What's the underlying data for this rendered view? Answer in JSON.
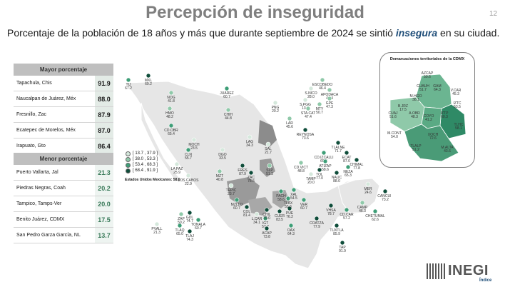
{
  "slide": {
    "title": "Percepción de inseguridad",
    "number": "12",
    "subtitle_before": "Porcentaje de la población de 18 años y más que durante septiembre de 2024 se sintió ",
    "subtitle_highlight": "insegura",
    "subtitle_after": " en su ciudad."
  },
  "top_table": {
    "header": "Mayor porcentaje",
    "rows": [
      {
        "city": "Tapachula, Chis",
        "value": "91.9"
      },
      {
        "city": "Naucalpan de Juárez, Méx",
        "value": "88.0"
      },
      {
        "city": "Fresnillo, Zac",
        "value": "87.9"
      },
      {
        "city": "Ecatepec de Morelos, Méx",
        "value": "87.0"
      },
      {
        "city": "Irapuato, Gto",
        "value": "86.4"
      }
    ]
  },
  "bottom_table": {
    "header": "Menor porcentaje",
    "rows": [
      {
        "city": "Puerto Vallarta, Jal",
        "value": "21.3"
      },
      {
        "city": "Piedras Negras, Coah",
        "value": "20.2"
      },
      {
        "city": "Tampico, Tamps-Ver",
        "value": "20.0"
      },
      {
        "city": "Benito Juárez, CDMX",
        "value": "17.5"
      },
      {
        "city": "San Pedro Garza García, NL",
        "value": "13.7"
      }
    ]
  },
  "legend": {
    "items": [
      {
        "label": "[ 13.7 , 37.9 ]",
        "color": "#d5e8dc"
      },
      {
        "label": "[ 38.0 , 53.3 ]",
        "color": "#8fc9a9"
      },
      {
        "label": "[ 53.4 , 68.3 ]",
        "color": "#3e9e77"
      },
      {
        "label": "[ 68.4 , 91.9 ]",
        "color": "#0f4d3a"
      }
    ],
    "national": "Estados Unidos Mexicanos: 58.6"
  },
  "cities": [
    {
      "code": "TIJ",
      "value": "67.2",
      "color": "#3e9e77"
    },
    {
      "code": "MXL",
      "value": "69.2",
      "color": "#0f4d3a"
    },
    {
      "code": "NOG",
      "value": "41.8",
      "color": "#8fc9a9"
    },
    {
      "code": "HMO",
      "value": "48.2",
      "color": "#8fc9a9"
    },
    {
      "code": "CD.OBR",
      "value": "65.4",
      "color": "#3e9e77"
    },
    {
      "code": "JUÁREZ",
      "value": "60.7",
      "color": "#3e9e77"
    },
    {
      "code": "CHIH",
      "value": "44.8",
      "color": "#8fc9a9"
    },
    {
      "code": "PNG",
      "value": "20.2",
      "color": "#d5e8dc"
    },
    {
      "code": "ESCOBEDO",
      "value": "46.4",
      "color": "#8fc9a9"
    },
    {
      "code": "S.NICO",
      "value": "28.0",
      "color": "#d5e8dc"
    },
    {
      "code": "APODACA",
      "value": "42.4",
      "color": "#8fc9a9"
    },
    {
      "code": "S.PGG",
      "value": "13.7",
      "color": "#d5e8dc"
    },
    {
      "code": "GPE",
      "value": "47.3",
      "color": "#8fc9a9"
    },
    {
      "code": "MTY",
      "value": "50.7",
      "color": "#8fc9a9"
    },
    {
      "code": "STA.CAT",
      "value": "47.4",
      "color": "#8fc9a9"
    },
    {
      "code": "LAR",
      "value": "45.6",
      "color": "#8fc9a9"
    },
    {
      "code": "REYNOSA",
      "value": "73.6",
      "color": "#0f4d3a"
    },
    {
      "code": "MOCH",
      "value": "23.5",
      "color": "#d5e8dc"
    },
    {
      "code": "CLN",
      "value": "55.7",
      "color": "#3e9e77"
    },
    {
      "code": "LAG",
      "value": "34.3",
      "color": "#d5e8dc"
    },
    {
      "code": "DGO",
      "value": "33.5",
      "color": "#d5e8dc"
    },
    {
      "code": "SAL",
      "value": "21.7",
      "color": "#d5e8dc"
    },
    {
      "code": "LA PAZ",
      "value": "25.9",
      "color": "#d5e8dc"
    },
    {
      "code": "LOS CABOS",
      "value": "22.9",
      "color": "#d5e8dc"
    },
    {
      "code": "MZT",
      "value": "40.8",
      "color": "#8fc9a9"
    },
    {
      "code": "FRES",
      "value": "87.9",
      "color": "#0f4d3a"
    },
    {
      "code": "ZAC",
      "value": "78.5",
      "color": "#0f4d3a"
    },
    {
      "code": "TEPIC",
      "value": "23.7",
      "color": "#d5e8dc"
    },
    {
      "code": "SLP",
      "value": "51.3",
      "color": "#8fc9a9"
    },
    {
      "code": "CD.VICT",
      "value": "48.8",
      "color": "#8fc9a9"
    },
    {
      "code": "TAMP",
      "value": "20.0",
      "color": "#d5e8dc"
    },
    {
      "code": "TLALNE",
      "value": "71.7",
      "color": "#0f4d3a"
    },
    {
      "code": "CD.IZCALLI",
      "value": "60.5",
      "color": "#3e9e77"
    },
    {
      "code": "ECAT",
      "value": "87.0",
      "color": "#0f4d3a"
    },
    {
      "code": "CHIMAL",
      "value": "77.8",
      "color": "#0f4d3a"
    },
    {
      "code": "ATIZAP",
      "value": "58.6",
      "color": "#3e9e77"
    },
    {
      "code": "NEZA",
      "value": "65.3",
      "color": "#3e9e77"
    },
    {
      "code": "TOL",
      "value": "77.0",
      "color": "#0f4d3a"
    },
    {
      "code": "NAUC",
      "value": "88.0",
      "color": "#0f4d3a"
    },
    {
      "code": "PVALL",
      "value": "21.3",
      "color": "#d5e8dc"
    },
    {
      "code": "ZAP",
      "value": "50.2",
      "color": "#8fc9a9"
    },
    {
      "code": "GDL",
      "value": "74.7",
      "color": "#0f4d3a"
    },
    {
      "code": "TONALA",
      "value": "60.7",
      "color": "#3e9e77"
    },
    {
      "code": "TLAQ",
      "value": "65.0",
      "color": "#3e9e77"
    },
    {
      "code": "TLAJ",
      "value": "74.3",
      "color": "#0f4d3a"
    },
    {
      "code": "MZLLO",
      "value": "60.7",
      "color": "#3e9e77"
    },
    {
      "code": "COL",
      "value": "81.4",
      "color": "#0f4d3a"
    },
    {
      "code": "L.CAR",
      "value": "34.1",
      "color": "#d5e8dc"
    },
    {
      "code": "IGT",
      "value": "57.7",
      "color": "#3e9e77"
    },
    {
      "code": "CHIL",
      "value": "79.0",
      "color": "#0f4d3a"
    },
    {
      "code": "ACAP",
      "value": "73.8",
      "color": "#0f4d3a"
    },
    {
      "code": "CUER",
      "value": "83.5",
      "color": "#0f4d3a"
    },
    {
      "code": "PUE",
      "value": "76.2",
      "color": "#0f4d3a"
    },
    {
      "code": "TLAX",
      "value": "55.6",
      "color": "#3e9e77"
    },
    {
      "code": "PACH",
      "value": "58.6",
      "color": "#3e9e77"
    },
    {
      "code": "XAL",
      "value": "54.5",
      "color": "#3e9e77"
    },
    {
      "code": "VER",
      "value": "60.7",
      "color": "#3e9e77"
    },
    {
      "code": "COATZA",
      "value": "77.9",
      "color": "#0f4d3a"
    },
    {
      "code": "OAX",
      "value": "64.3",
      "color": "#3e9e77"
    },
    {
      "code": "VHSA",
      "value": "78.7",
      "color": "#0f4d3a"
    },
    {
      "code": "CD.CAR",
      "value": "57.2",
      "color": "#3e9e77"
    },
    {
      "code": "CAMP",
      "value": "46.3",
      "color": "#8fc9a9"
    },
    {
      "code": "MER",
      "value": "24.6",
      "color": "#d5e8dc"
    },
    {
      "code": "CANCUN",
      "value": "73.2",
      "color": "#0f4d3a"
    },
    {
      "code": "CHETUMAL",
      "value": "62.6",
      "color": "#3e9e77"
    },
    {
      "code": "TUXTLA",
      "value": "85.9",
      "color": "#0f4d3a"
    },
    {
      "code": "TAP",
      "value": "91.9",
      "color": "#0f4d3a"
    }
  ],
  "cdmx_inset": {
    "title": "Demarcaciones territoriales de la CDMX",
    "districts": [
      {
        "code": "AZCAP",
        "value": "50.6"
      },
      {
        "code": "GAM",
        "value": "64.3"
      },
      {
        "code": "V.CAR",
        "value": "45.3"
      },
      {
        "code": "CUAUH",
        "value": "51.7"
      },
      {
        "code": "M.HGO",
        "value": "38.1"
      },
      {
        "code": "IZTC",
        "value": "53.5"
      },
      {
        "code": "B.JRZ",
        "value": "17.5"
      },
      {
        "code": "CUAJ",
        "value": "51.6"
      },
      {
        "code": "A.OBR",
        "value": "48.3"
      },
      {
        "code": "COYO",
        "value": "41.2"
      },
      {
        "code": "IZTP",
        "value": "60.3"
      },
      {
        "code": "TLHC",
        "value": "58.1"
      },
      {
        "code": "M.CONT",
        "value": "54.0"
      },
      {
        "code": "XOCH",
        "value": "72.6"
      },
      {
        "code": "TLALP",
        "value": "51.2"
      },
      {
        "code": "M.ALTA",
        "value": "43.6"
      }
    ]
  },
  "footer": {
    "logo": "INEGI",
    "index_link": "Índice"
  }
}
